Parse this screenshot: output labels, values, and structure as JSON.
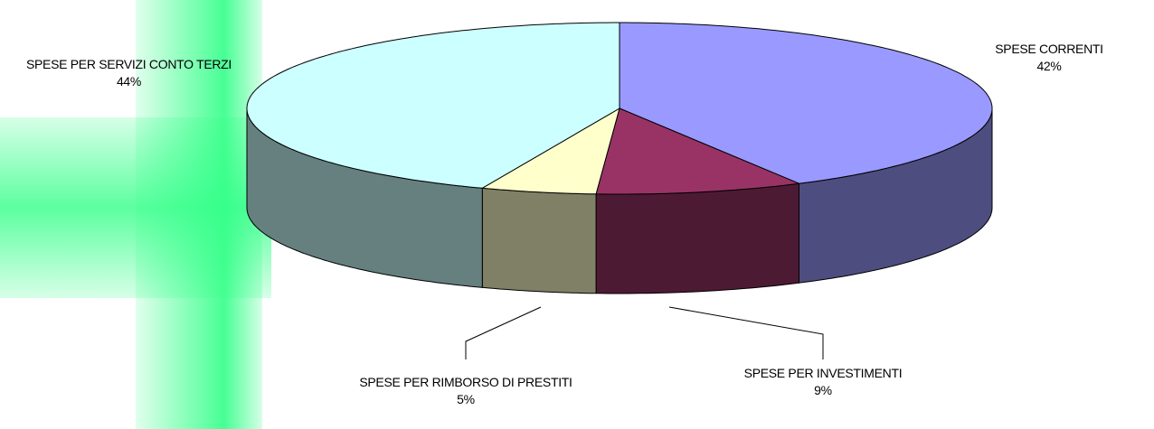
{
  "chart_data": {
    "type": "pie3d",
    "categories": [
      "SPESE CORRENTI",
      "SPESE PER INVESTIMENTI",
      "SPESE PER RIMBORSO DI PRESTITI",
      "SPESE PER SERVIZI CONTO TERZI"
    ],
    "values": [
      42,
      9,
      5,
      44
    ],
    "value_labels": [
      "42%",
      "9%",
      "5%",
      "44%"
    ],
    "colors": [
      "#9999ff",
      "#993366",
      "#ffffcc",
      "#ccffff"
    ],
    "side_colors": [
      "#4d4d80",
      "#4d1a33",
      "#808066",
      "#668080"
    ]
  }
}
